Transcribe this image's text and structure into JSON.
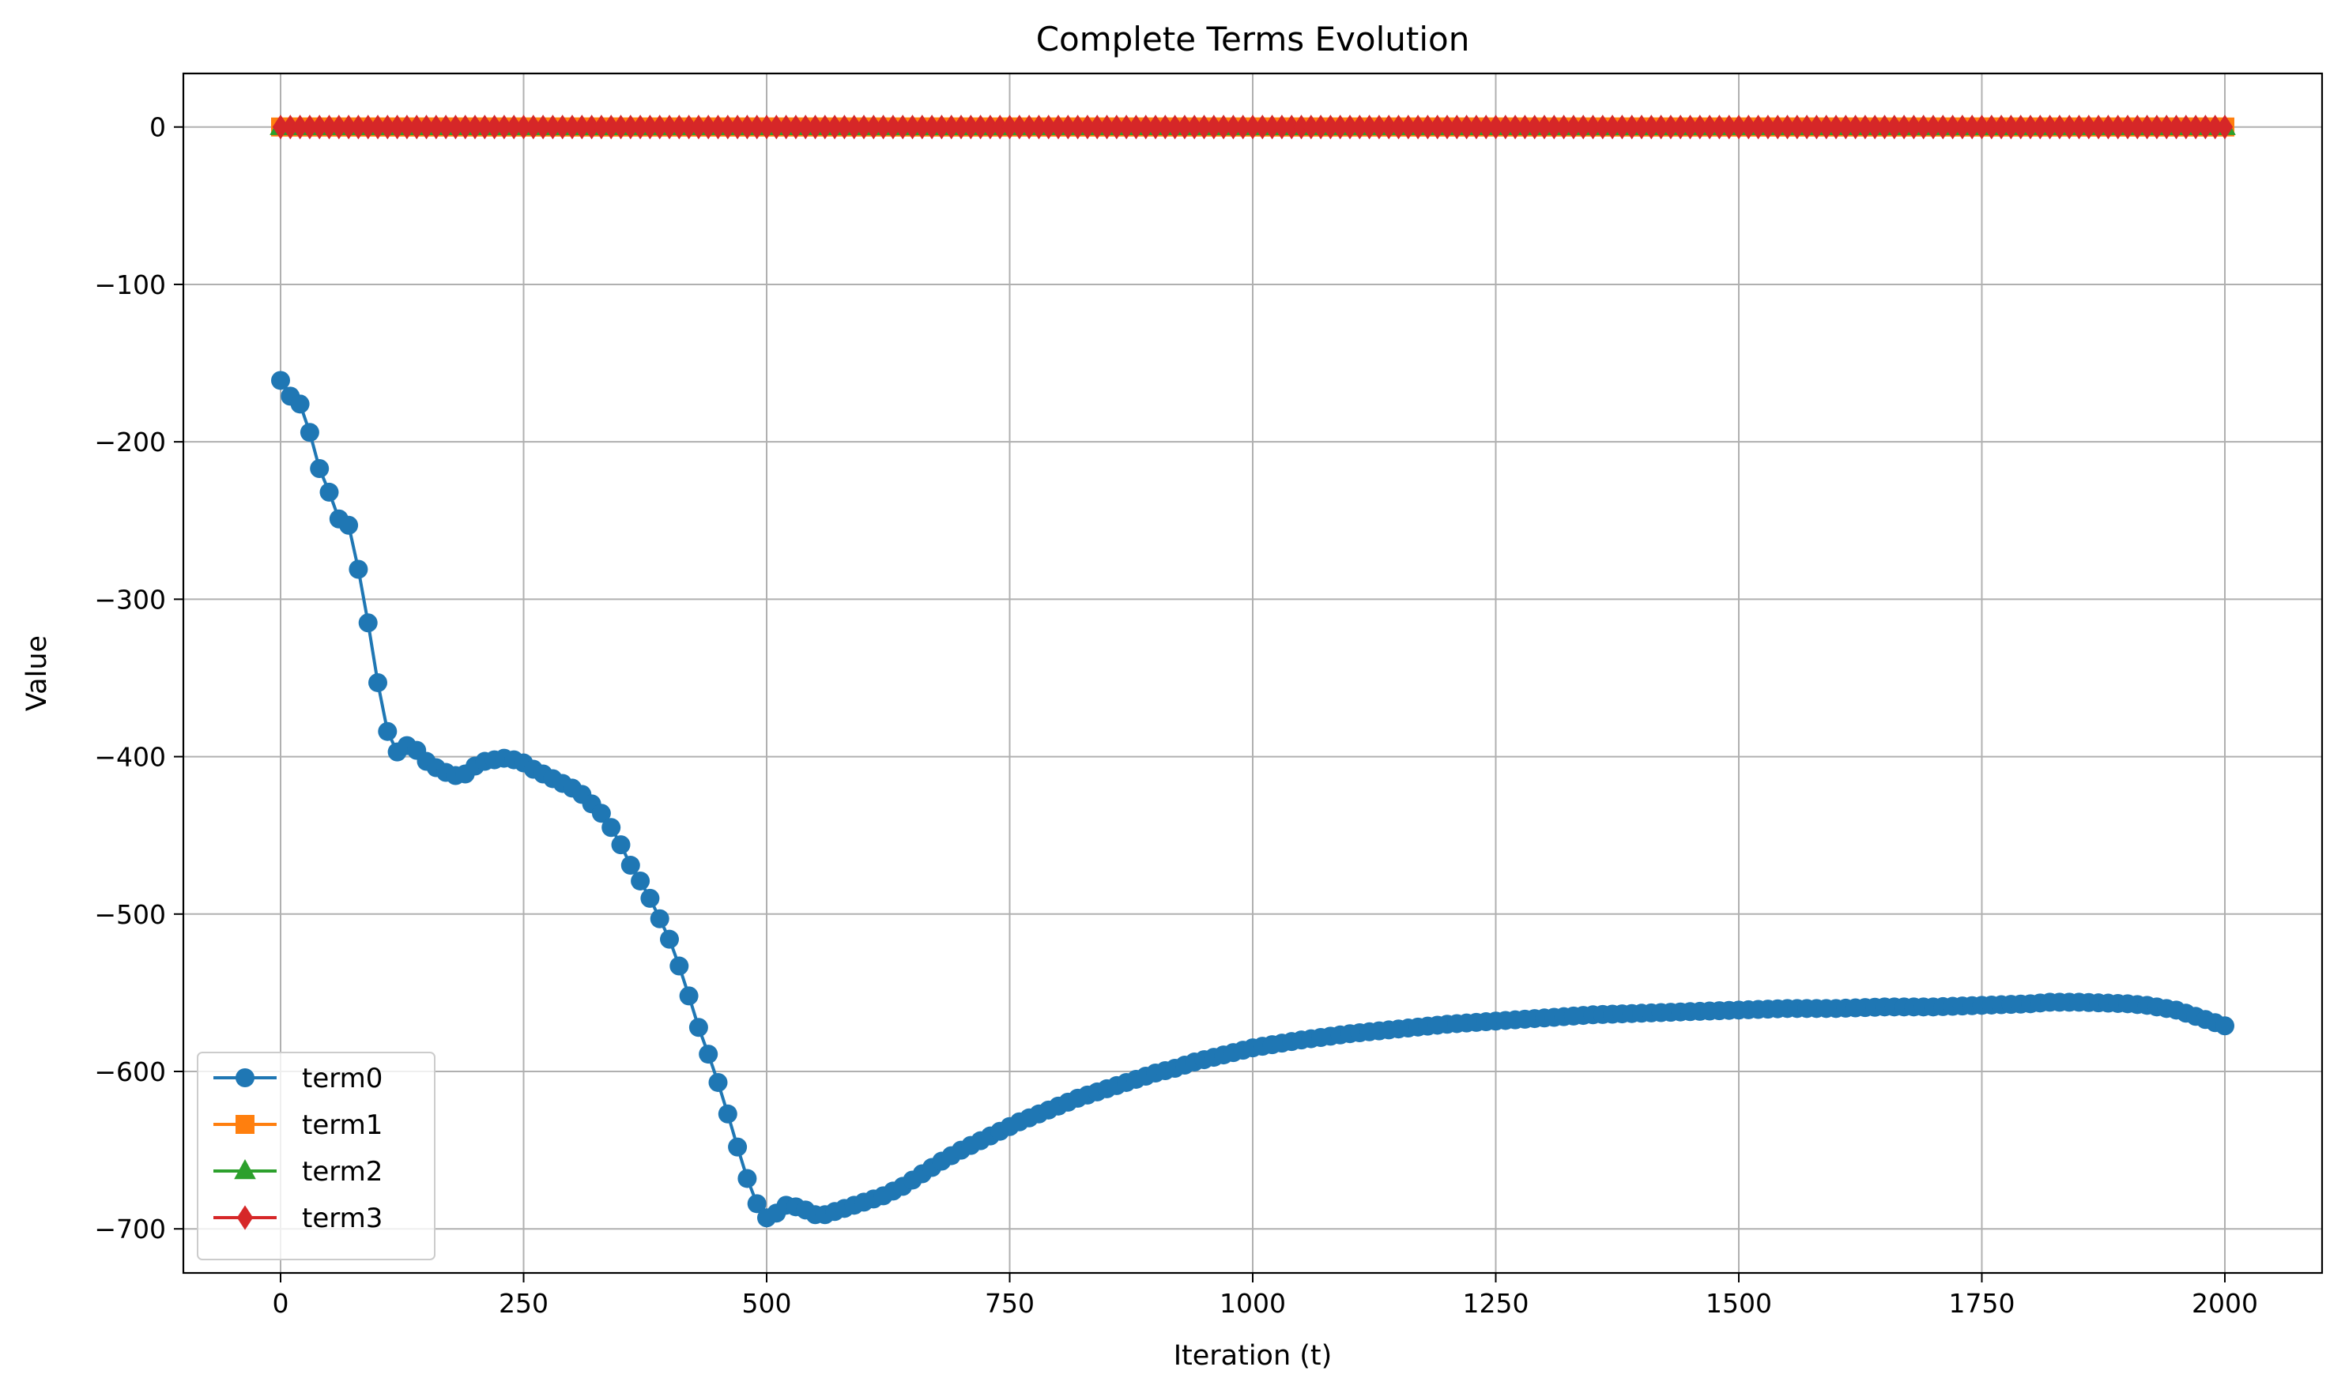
{
  "chart_data": {
    "type": "line",
    "title": "Complete Terms Evolution",
    "xlabel": "Iteration (t)",
    "ylabel": "Value",
    "xlim": [
      -100,
      2100
    ],
    "ylim": [
      -728,
      34
    ],
    "xticks": [
      0,
      250,
      500,
      750,
      1000,
      1250,
      1500,
      1750,
      2000
    ],
    "yticks": [
      0,
      -100,
      -200,
      -300,
      -400,
      -500,
      -600,
      -700
    ],
    "xtick_labels": [
      "0",
      "250",
      "500",
      "750",
      "1000",
      "1250",
      "1500",
      "1750",
      "2000"
    ],
    "ytick_labels": [
      "0",
      "−100",
      "−200",
      "−300",
      "−400",
      "−500",
      "−600",
      "−700"
    ],
    "grid": true,
    "legend_position": "lower-left",
    "sample_step": 10,
    "x_start": 0,
    "x_end": 2000,
    "series": [
      {
        "name": "term0",
        "color": "#1f77b4",
        "marker": "circle",
        "points": [
          [
            0,
            -161
          ],
          [
            10,
            -171
          ],
          [
            20,
            -176
          ],
          [
            30,
            -194
          ],
          [
            40,
            -217
          ],
          [
            50,
            -232
          ],
          [
            60,
            -249
          ],
          [
            70,
            -253
          ],
          [
            80,
            -281
          ],
          [
            90,
            -315
          ],
          [
            100,
            -353
          ],
          [
            110,
            -384
          ],
          [
            120,
            -397
          ],
          [
            130,
            -393
          ],
          [
            140,
            -396
          ],
          [
            150,
            -403
          ],
          [
            160,
            -407
          ],
          [
            170,
            -410
          ],
          [
            180,
            -412
          ],
          [
            190,
            -411
          ],
          [
            200,
            -406
          ],
          [
            210,
            -403
          ],
          [
            220,
            -402
          ],
          [
            230,
            -401
          ],
          [
            240,
            -402
          ],
          [
            250,
            -404
          ],
          [
            260,
            -408
          ],
          [
            270,
            -411
          ],
          [
            280,
            -414
          ],
          [
            290,
            -417
          ],
          [
            300,
            -420
          ],
          [
            310,
            -424
          ],
          [
            320,
            -430
          ],
          [
            330,
            -436
          ],
          [
            340,
            -445
          ],
          [
            350,
            -456
          ],
          [
            360,
            -469
          ],
          [
            370,
            -479
          ],
          [
            380,
            -490
          ],
          [
            390,
            -503
          ],
          [
            400,
            -516
          ],
          [
            410,
            -533
          ],
          [
            420,
            -552
          ],
          [
            430,
            -572
          ],
          [
            440,
            -589
          ],
          [
            450,
            -607
          ],
          [
            460,
            -627
          ],
          [
            470,
            -648
          ],
          [
            480,
            -668
          ],
          [
            490,
            -684
          ],
          [
            500,
            -693
          ],
          [
            510,
            -690
          ],
          [
            520,
            -685
          ],
          [
            530,
            -686
          ],
          [
            540,
            -688
          ],
          [
            550,
            -691
          ],
          [
            560,
            -691
          ],
          [
            570,
            -689
          ],
          [
            580,
            -687
          ],
          [
            590,
            -685
          ],
          [
            600,
            -683
          ],
          [
            620,
            -679
          ],
          [
            640,
            -673
          ],
          [
            660,
            -665
          ],
          [
            680,
            -657
          ],
          [
            700,
            -650
          ],
          [
            720,
            -644
          ],
          [
            740,
            -638
          ],
          [
            760,
            -632
          ],
          [
            780,
            -627
          ],
          [
            800,
            -622
          ],
          [
            820,
            -617
          ],
          [
            840,
            -613
          ],
          [
            860,
            -609
          ],
          [
            880,
            -605
          ],
          [
            900,
            -601
          ],
          [
            920,
            -598
          ],
          [
            940,
            -594
          ],
          [
            960,
            -591
          ],
          [
            980,
            -588
          ],
          [
            1000,
            -585
          ],
          [
            1050,
            -580
          ],
          [
            1100,
            -576
          ],
          [
            1150,
            -573
          ],
          [
            1200,
            -570
          ],
          [
            1250,
            -568
          ],
          [
            1300,
            -566
          ],
          [
            1350,
            -564
          ],
          [
            1400,
            -563
          ],
          [
            1450,
            -562
          ],
          [
            1500,
            -561
          ],
          [
            1550,
            -560
          ],
          [
            1600,
            -560
          ],
          [
            1650,
            -559
          ],
          [
            1700,
            -559
          ],
          [
            1750,
            -558
          ],
          [
            1800,
            -557
          ],
          [
            1820,
            -556
          ],
          [
            1850,
            -556
          ],
          [
            1900,
            -557
          ],
          [
            1920,
            -558
          ],
          [
            1950,
            -561
          ],
          [
            1970,
            -565
          ],
          [
            1990,
            -569
          ],
          [
            2000,
            -571
          ]
        ]
      },
      {
        "name": "term1",
        "color": "#ff7f0e",
        "marker": "square",
        "constant": 0
      },
      {
        "name": "term2",
        "color": "#2ca02c",
        "marker": "triangle",
        "constant": 0
      },
      {
        "name": "term3",
        "color": "#d62728",
        "marker": "diamond",
        "constant": 0
      }
    ]
  }
}
